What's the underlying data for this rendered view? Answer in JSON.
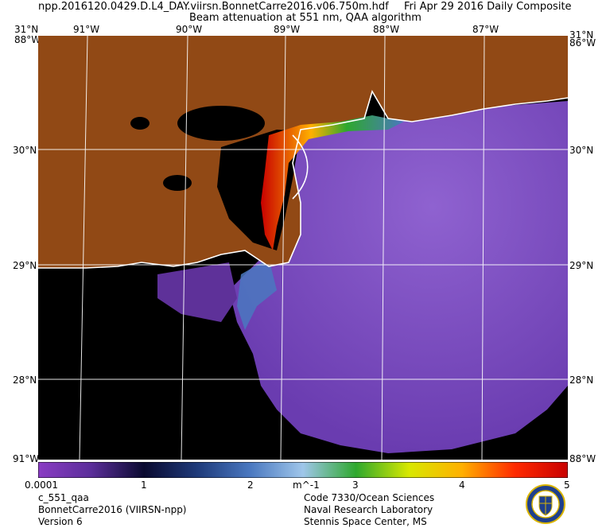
{
  "header": {
    "filename": "npp.2016120.0429.D.L4_DAY.viirsn.BonnetCarre2016.v06.750m.hdf",
    "date_label": "Fri Apr 29 2016 Daily Composite",
    "product_title": "Beam attenuation at 551 nm, QAA algorithm"
  },
  "axes": {
    "lon_top": [
      "91°W",
      "90°W",
      "89°W",
      "88°W",
      "87°W"
    ],
    "corner_top_left": "31°N",
    "corner_top_left_lon": "88°W",
    "corner_top_right": "31°N",
    "corner_top_right_lon": "86°W",
    "lat_left": [
      "30°N",
      "29°N",
      "28°N"
    ],
    "lat_right": [
      "30°N",
      "29°N",
      "28°N"
    ],
    "corner_bottom_left": "91°W",
    "corner_bottom_right": "88°W"
  },
  "colorbar": {
    "ticks": [
      "0.0001",
      "1",
      "2",
      "m^-1",
      "3",
      "4",
      "5"
    ],
    "colors": [
      "#8a3cc4",
      "#5b2e9a",
      "#0a0a30",
      "#1e3a7a",
      "#4a78c0",
      "#9fc6ea",
      "#2ea82e",
      "#d8e800",
      "#ffb000",
      "#ff2a00",
      "#c80000"
    ]
  },
  "footer": {
    "left": [
      "c_551_qaa",
      "BonnetCarre2016 (VIIRSN-npp)",
      "Version 6"
    ],
    "right": [
      "Code 7330/Ocean Sciences",
      "Naval Research Laboratory",
      "Stennis Space Center, MS"
    ]
  },
  "colors": {
    "land": "#914915",
    "open_water": "#7a4cc0",
    "no_data": "#000000",
    "coastline": "#ffffff"
  }
}
